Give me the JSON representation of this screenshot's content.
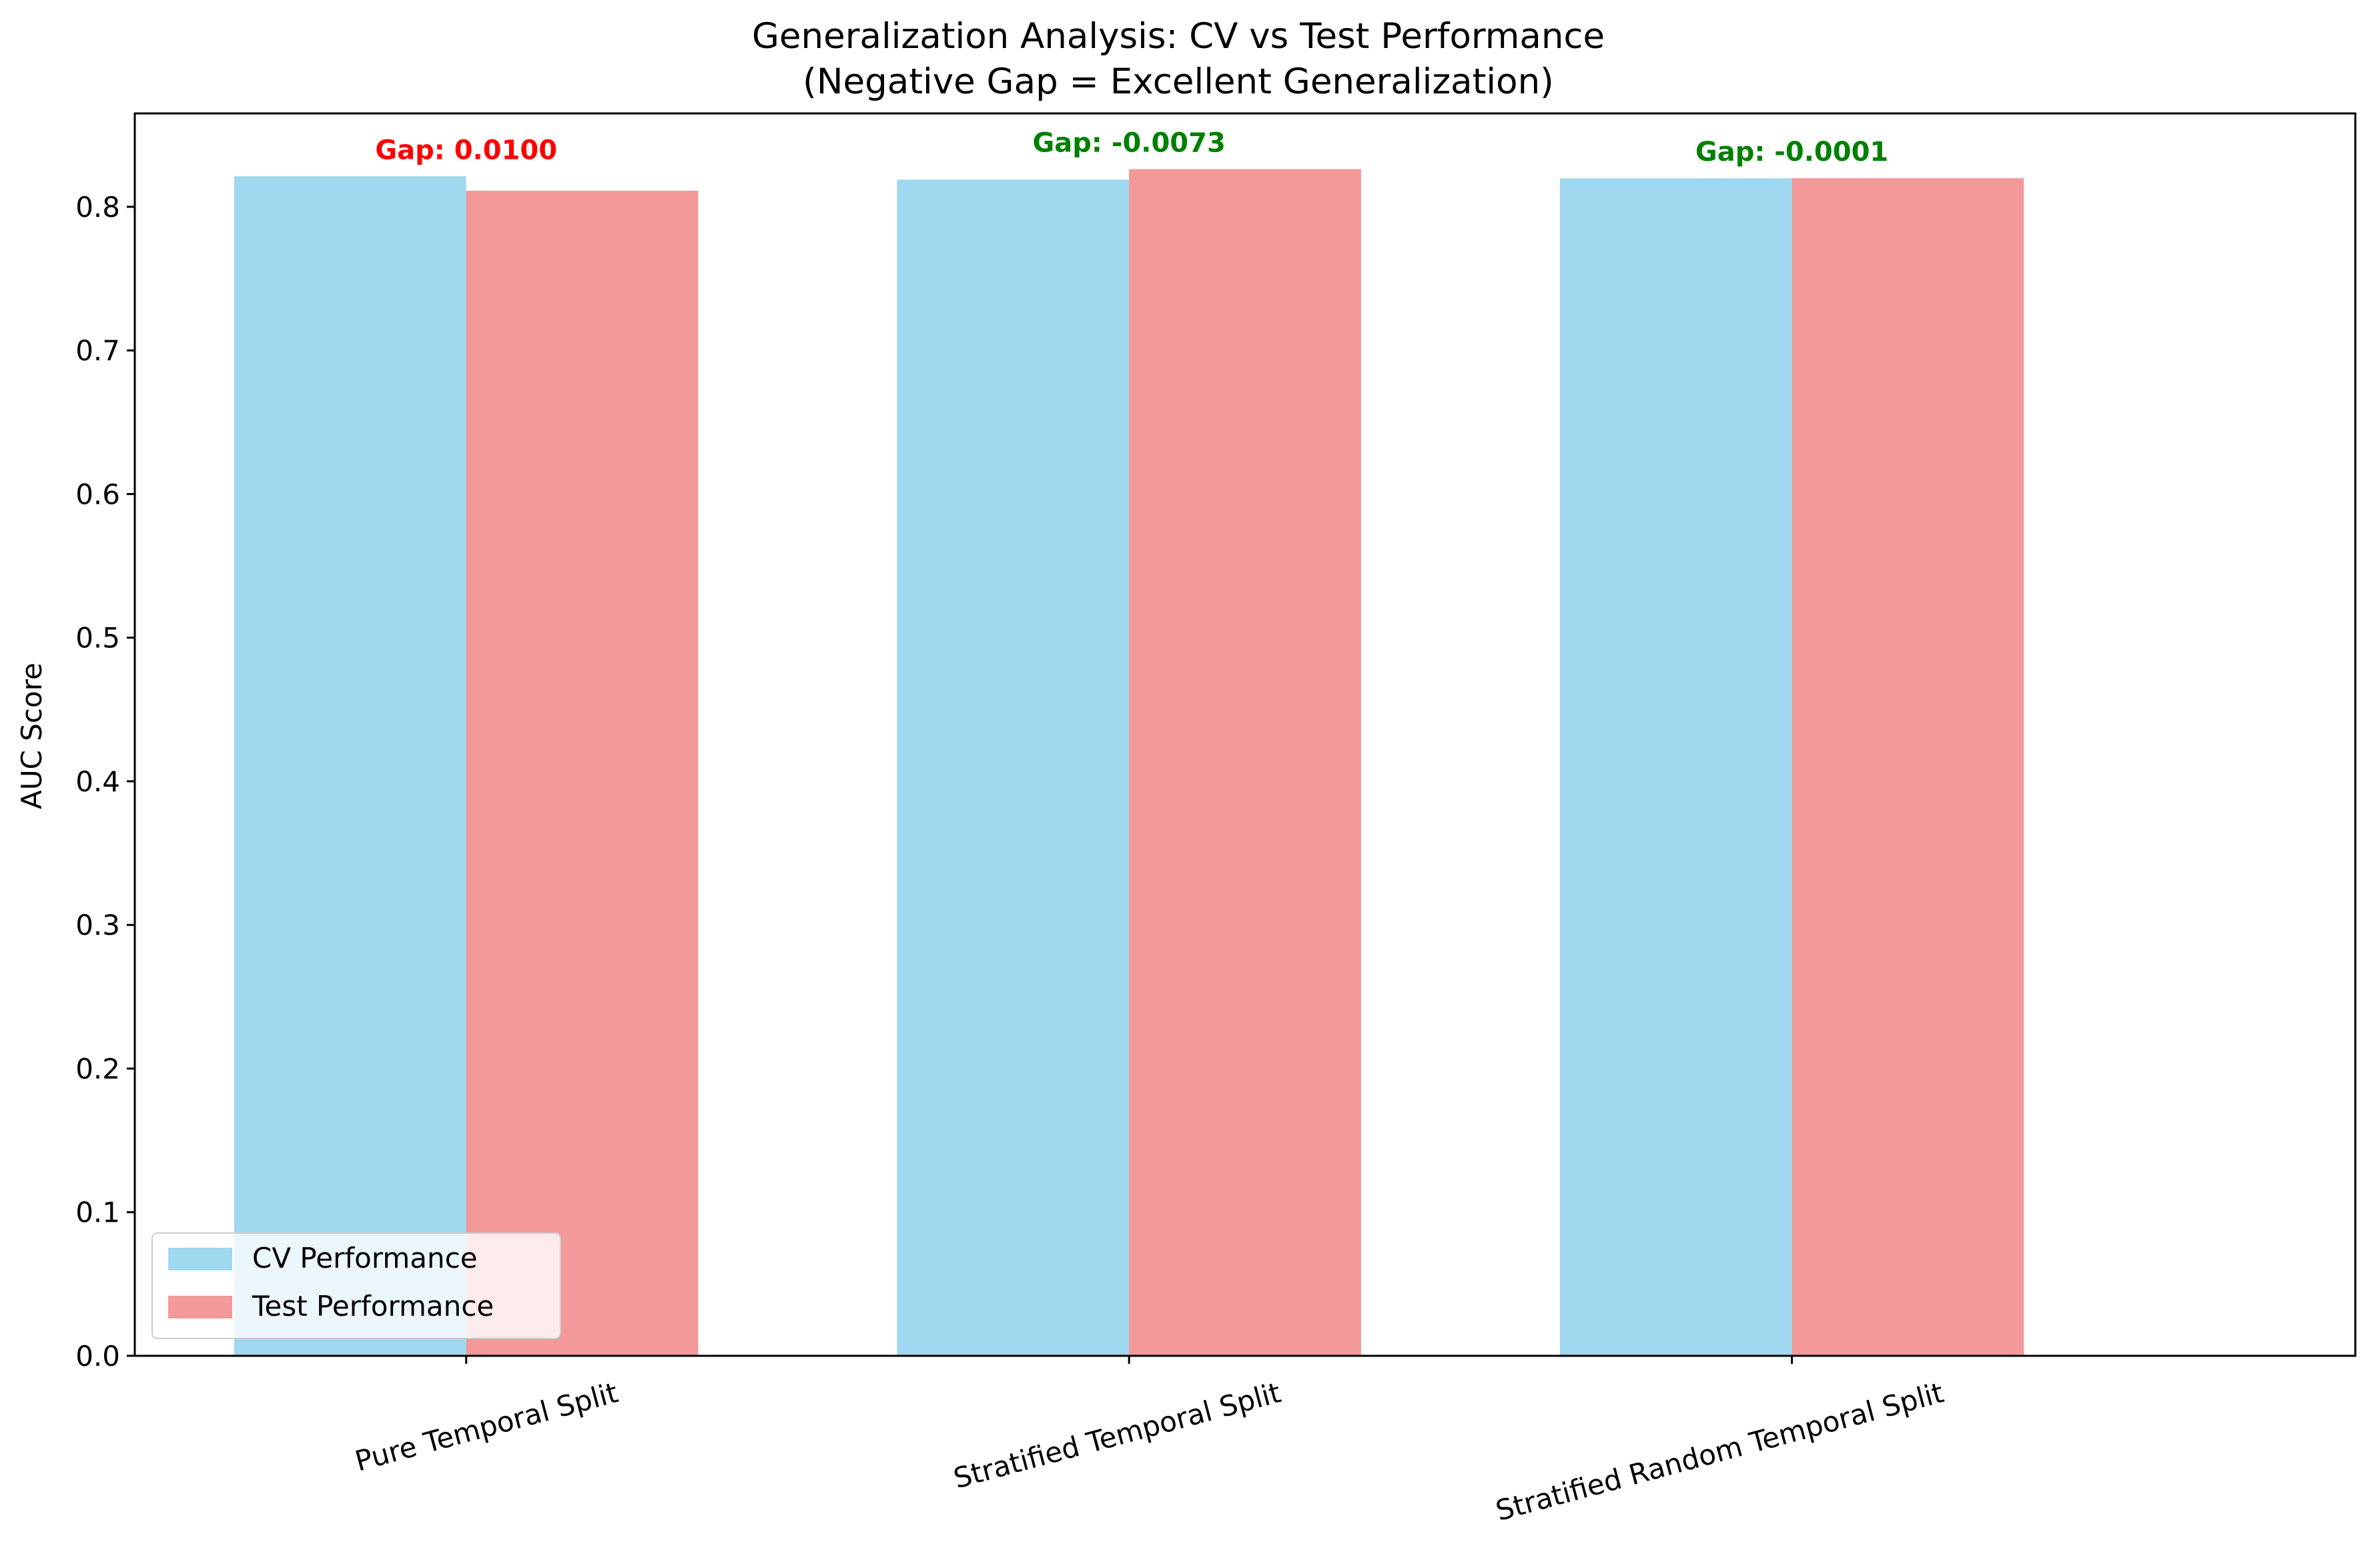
{
  "chart_data": {
    "type": "bar",
    "title": "Generalization Analysis: CV vs Test Performance",
    "subtitle": "(Negative Gap = Excellent Generalization)",
    "xlabel": "",
    "ylabel": "AUC Score",
    "ylim": [
      0,
      0.865
    ],
    "yticks": [
      "0.0",
      "0.1",
      "0.2",
      "0.3",
      "0.4",
      "0.5",
      "0.6",
      "0.7",
      "0.8"
    ],
    "ytick_values": [
      0,
      0.1,
      0.2,
      0.3,
      0.4,
      0.5,
      0.6,
      0.7,
      0.8
    ],
    "grid": false,
    "legend_position": "lower-left",
    "categories": [
      "Pure Temporal Split",
      "Stratified Temporal Split",
      "Stratified Random Temporal Split"
    ],
    "series": [
      {
        "name": "CV Performance",
        "color": "#87ceeb",
        "values": [
          0.8212,
          0.8189,
          0.8198
        ]
      },
      {
        "name": "Test Performance",
        "color": "#f08080",
        "values": [
          0.8112,
          0.8262,
          0.8199
        ]
      }
    ],
    "annotations": [
      {
        "text": "Gap: 0.0100",
        "color": "#ff0000",
        "category": 0,
        "y": 0.8212
      },
      {
        "text": "Gap: -0.0073",
        "color": "#008000",
        "category": 1,
        "y": 0.8262
      },
      {
        "text": "Gap: -0.0001",
        "color": "#008000",
        "category": 2,
        "y": 0.8199
      }
    ]
  }
}
